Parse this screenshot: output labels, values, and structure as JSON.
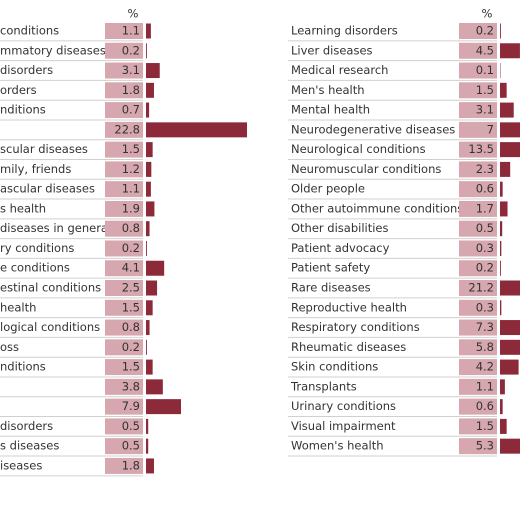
{
  "left": {
    "header": "%",
    "rows": [
      {
        "label": "conditions",
        "value": 1.1
      },
      {
        "label": "mmatory diseases",
        "value": 0.2
      },
      {
        "label": " disorders",
        "value": 3.1
      },
      {
        "label": "orders",
        "value": 1.8
      },
      {
        "label": "nditions",
        "value": 0.7
      },
      {
        "label": null,
        "value": 22.8
      },
      {
        "label": "scular diseases",
        "value": 1.5
      },
      {
        "label": "mily, friends",
        "value": 1.2
      },
      {
        "label": "ascular diseases",
        "value": 1.1
      },
      {
        "label": "s health",
        "value": 1.9
      },
      {
        "label": " diseases in general",
        "value": 0.8
      },
      {
        "label": "ry conditions",
        "value": 0.2
      },
      {
        "label": "e conditions",
        "value": 4.1
      },
      {
        "label": "estinal conditions",
        "value": 2.5
      },
      {
        "label": "health",
        "value": 1.5
      },
      {
        "label": "logical conditions",
        "value": 0.8
      },
      {
        "label": "oss",
        "value": 0.2
      },
      {
        "label": "nditions",
        "value": 1.5
      },
      {
        "label": null,
        "value": 3.8
      },
      {
        "label": null,
        "value": 7.9
      },
      {
        "label": "disorders",
        "value": 0.5
      },
      {
        "label": "s diseases",
        "value": 0.5
      },
      {
        "label": "iseases",
        "value": 1.8
      }
    ]
  },
  "right": {
    "header": "%",
    "rows": [
      {
        "label": "Learning disorders",
        "value": 0.2
      },
      {
        "label": "Liver diseases",
        "value": 4.5
      },
      {
        "label": "Medical research",
        "value": 0.1
      },
      {
        "label": "Men's health",
        "value": 1.5
      },
      {
        "label": "Mental health",
        "value": 3.1
      },
      {
        "label": "Neurodegenerative diseases",
        "value": 7
      },
      {
        "label": "Neurological conditions",
        "value": 13.5
      },
      {
        "label": "Neuromuscular conditions",
        "value": 2.3
      },
      {
        "label": "Older people",
        "value": 0.6
      },
      {
        "label": "Other autoimmune conditions",
        "value": 1.7
      },
      {
        "label": "Other disabilities",
        "value": 0.5
      },
      {
        "label": "Patient advocacy",
        "value": 0.3
      },
      {
        "label": "Patient safety",
        "value": 0.2
      },
      {
        "label": "Rare diseases",
        "value": 21.2
      },
      {
        "label": "Reproductive health",
        "value": 0.3
      },
      {
        "label": "Respiratory conditions",
        "value": 7.3
      },
      {
        "label": "Rheumatic diseases",
        "value": 5.8
      },
      {
        "label": "Skin conditions",
        "value": 4.2
      },
      {
        "label": "Transplants",
        "value": 1.1
      },
      {
        "label": "Urinary conditions",
        "value": 0.6
      },
      {
        "label": "Visual impairment",
        "value": 1.5
      },
      {
        "label": "Women's health",
        "value": 5.3
      }
    ]
  }
}
